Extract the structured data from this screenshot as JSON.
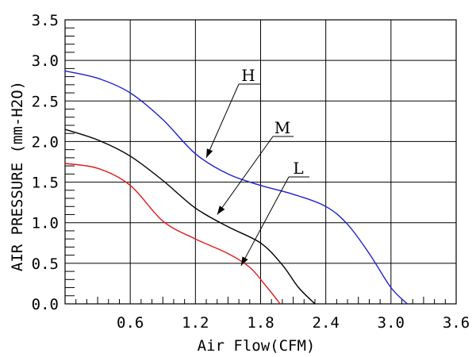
{
  "chart_data": {
    "type": "line",
    "title": "",
    "xlabel": "Air Flow(CFM)",
    "ylabel": "AIR PRESSURE (mm-H2O)",
    "xlim": [
      0,
      3.6
    ],
    "ylim": [
      0,
      3.5
    ],
    "x_ticks": [
      0.6,
      1.2,
      1.8,
      2.4,
      3.0,
      3.6
    ],
    "x_tick_labels": [
      "0.6",
      "1.2",
      "1.8",
      "2.4",
      "3.0",
      "3.6"
    ],
    "y_ticks": [
      0,
      0.5,
      1.0,
      1.5,
      2.0,
      2.5,
      3.0,
      3.5
    ],
    "y_tick_labels": [
      "0.0",
      "0.5",
      "1.0",
      "1.5",
      "2.0",
      "2.5",
      "3.0",
      "3.5"
    ],
    "grid": true,
    "series": [
      {
        "name": "H",
        "color": "#1f1fd6",
        "x": [
          0,
          0.3,
          0.6,
          0.9,
          1.2,
          1.5,
          1.8,
          2.1,
          2.4,
          2.6,
          2.8,
          3.0,
          3.15
        ],
        "y": [
          2.87,
          2.78,
          2.6,
          2.27,
          1.85,
          1.6,
          1.46,
          1.35,
          1.2,
          0.98,
          0.62,
          0.2,
          0.0
        ]
      },
      {
        "name": "M",
        "color": "#000000",
        "x": [
          0,
          0.3,
          0.6,
          0.9,
          1.2,
          1.5,
          1.8,
          2.0,
          2.15,
          2.3
        ],
        "y": [
          2.15,
          2.02,
          1.82,
          1.52,
          1.18,
          0.95,
          0.75,
          0.48,
          0.2,
          0.0
        ]
      },
      {
        "name": "L",
        "color": "#e01b1b",
        "x": [
          0,
          0.3,
          0.6,
          0.9,
          1.2,
          1.5,
          1.7,
          1.85,
          1.98
        ],
        "y": [
          1.73,
          1.67,
          1.46,
          1.02,
          0.8,
          0.62,
          0.45,
          0.22,
          0.0
        ]
      }
    ],
    "annotations": [
      {
        "label": "H",
        "point": [
          1.3,
          1.8
        ]
      },
      {
        "label": "M",
        "point": [
          1.4,
          1.1
        ]
      },
      {
        "label": "L",
        "point": [
          1.62,
          0.47
        ]
      }
    ]
  }
}
